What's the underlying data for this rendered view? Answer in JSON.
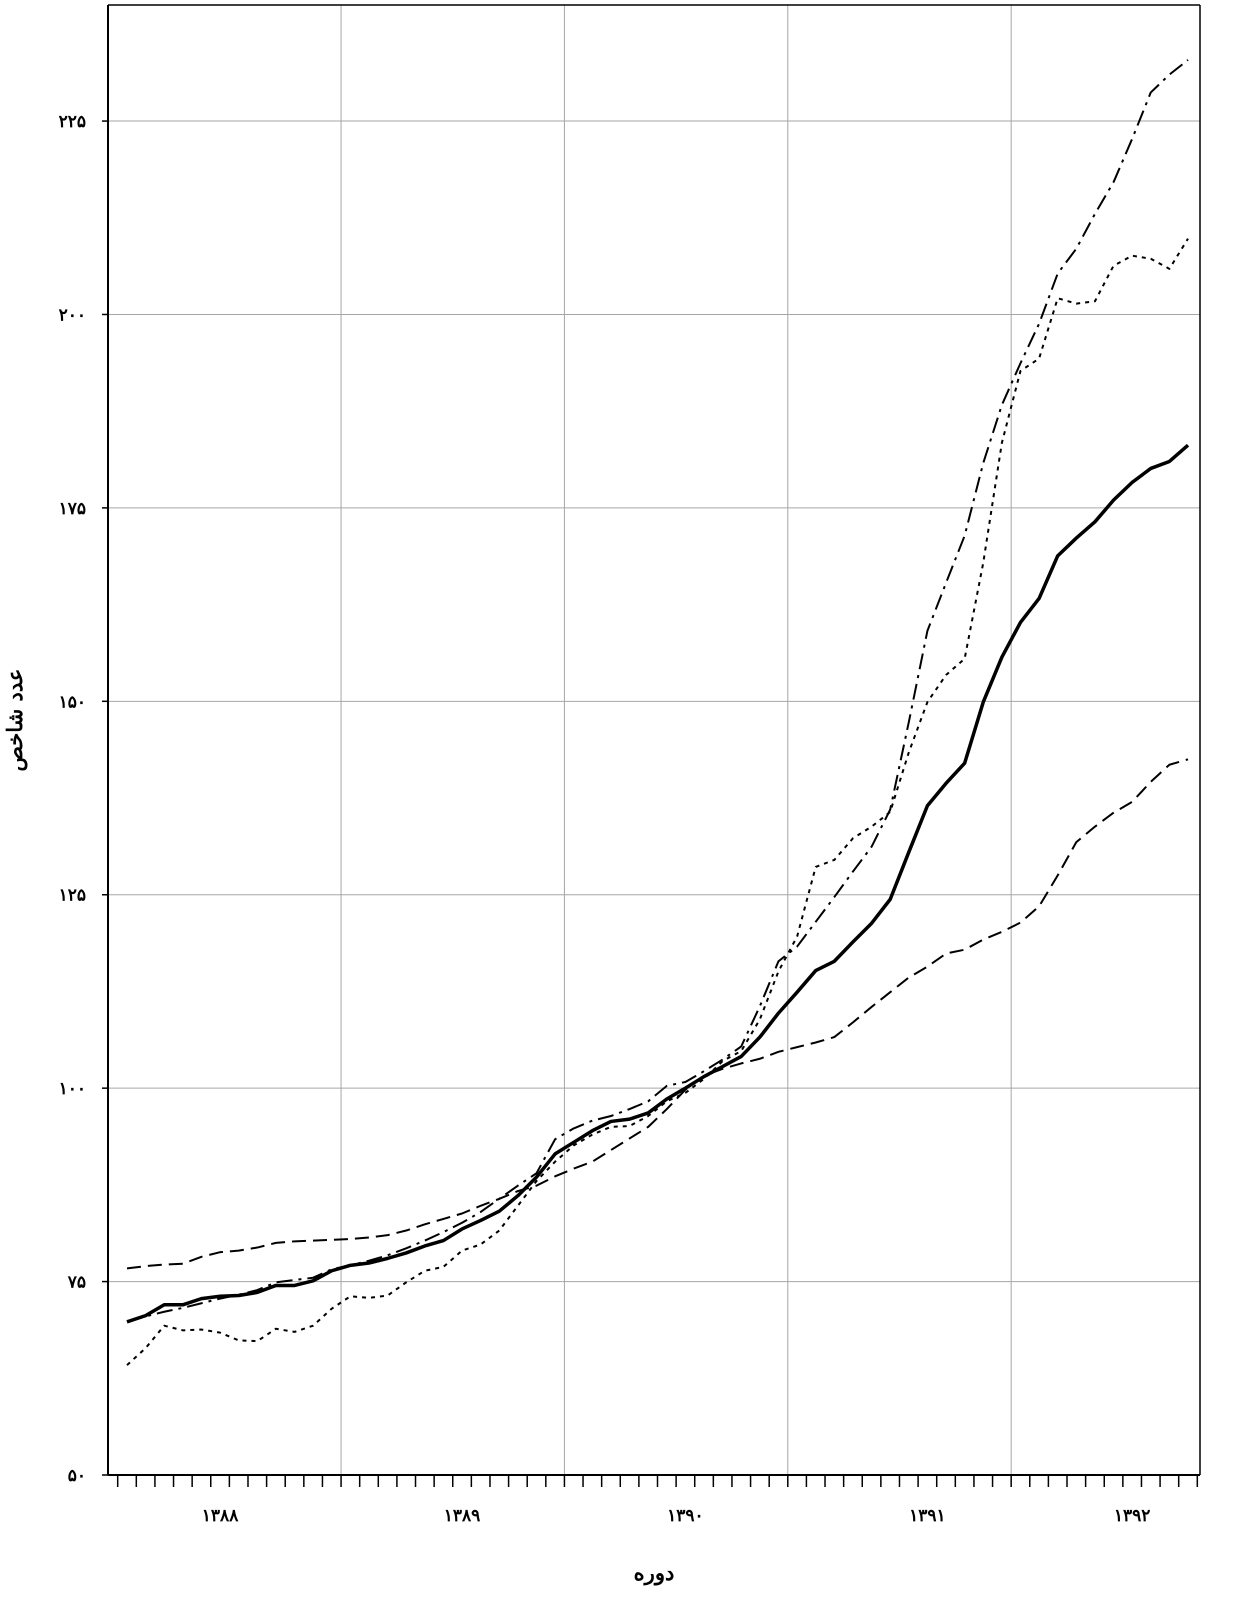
{
  "chart_data": {
    "type": "line",
    "x_label": "دوره",
    "y_label": "عدد شاخص",
    "categories": [
      null,
      null,
      null,
      null,
      null,
      "۱۳۸۸",
      null,
      null,
      null,
      null,
      null,
      null,
      null,
      null,
      null,
      null,
      null,
      null,
      "۱۳۸۹",
      null,
      null,
      null,
      null,
      null,
      null,
      null,
      null,
      null,
      null,
      null,
      "۱۳۹۰",
      null,
      null,
      null,
      null,
      null,
      null,
      null,
      null,
      null,
      null,
      null,
      null,
      "۱۳۹۱",
      null,
      null,
      null,
      null,
      null,
      null,
      null,
      null,
      null,
      null,
      "۱۳۹۲",
      null,
      null,
      null
    ],
    "ylim": [
      50,
      240
    ],
    "yticks": [
      {
        "value": 50,
        "label": "۵۰"
      },
      {
        "value": 75,
        "label": "۷۵"
      },
      {
        "value": 100,
        "label": "۱۰۰"
      },
      {
        "value": 125,
        "label": "۱۲۵"
      },
      {
        "value": 150,
        "label": "۱۵۰"
      },
      {
        "value": 175,
        "label": "۱۷۵"
      },
      {
        "value": 200,
        "label": "۲۰۰"
      },
      {
        "value": 225,
        "label": "۲۲۵"
      }
    ],
    "grid": true,
    "series": [
      {
        "color": "#000000",
        "style": "dashed",
        "values": [
          76.7,
          77.0,
          77.2,
          77.3,
          78.2,
          78.8,
          79.0,
          79.4,
          80.0,
          80.2,
          80.3,
          80.4,
          80.5,
          80.7,
          81.0,
          81.6,
          82.4,
          83.1,
          83.8,
          84.8,
          85.7,
          86.7,
          87.4,
          88.6,
          89.6,
          90.5,
          92.0,
          93.5,
          95.0,
          97.3,
          99.8,
          101.6,
          102.5,
          103.2,
          103.8,
          104.7,
          105.3,
          105.9,
          106.6,
          108.5,
          110.5,
          112.4,
          114.3,
          115.7,
          117.4,
          117.9,
          119.2,
          120.2,
          121.4,
          123.5,
          127.5,
          131.8,
          133.8,
          135.6,
          137.0,
          139.6,
          141.8,
          142.5
        ]
      },
      {
        "color": "#000000",
        "style": "dotted",
        "values": [
          64.2,
          66.4,
          69.3,
          68.7,
          68.8,
          68.4,
          67.4,
          67.3,
          68.9,
          68.5,
          69.3,
          71.5,
          73.1,
          72.9,
          73.2,
          74.9,
          76.4,
          76.9,
          79.0,
          79.8,
          81.6,
          84.8,
          88.0,
          90.5,
          92.6,
          94.0,
          95.0,
          95.1,
          96.4,
          98.3,
          99.4,
          101.2,
          103.5,
          104.8,
          108.9,
          115.1,
          119.6,
          128.6,
          129.5,
          132.3,
          133.8,
          135.7,
          143.4,
          149.9,
          153.4,
          155.5,
          167.9,
          183.4,
          192.7,
          194.3,
          202.1,
          201.4,
          201.7,
          206.3,
          207.6,
          207.2,
          205.9,
          209.8
        ]
      },
      {
        "color": "#000000",
        "style": "dashdot",
        "values": [
          69.8,
          70.5,
          71.1,
          71.6,
          72.2,
          72.8,
          73.3,
          73.9,
          74.9,
          75.2,
          75.5,
          76.6,
          77.1,
          77.7,
          78.4,
          79.3,
          80.3,
          81.4,
          82.6,
          84.0,
          85.7,
          87.4,
          89.0,
          93.4,
          94.8,
          95.8,
          96.4,
          97.3,
          98.3,
          100.3,
          100.8,
          102.2,
          103.7,
          105.4,
          110.6,
          116.4,
          118.3,
          121.5,
          124.7,
          128.0,
          131.2,
          136.0,
          147.3,
          159.1,
          165.3,
          171.4,
          180.8,
          188.3,
          193.7,
          198.8,
          205.3,
          208.5,
          213.0,
          217.1,
          222.7,
          228.7,
          231.0,
          232.9
        ]
      },
      {
        "color": "#000000",
        "style": "solid",
        "values": [
          69.8,
          70.6,
          72.0,
          72.0,
          72.8,
          73.1,
          73.2,
          73.6,
          74.5,
          74.5,
          75.1,
          76.4,
          77.1,
          77.4,
          78.0,
          78.7,
          79.6,
          80.3,
          81.8,
          82.9,
          84.1,
          86.1,
          88.5,
          91.5,
          93.0,
          94.5,
          95.7,
          96.0,
          96.8,
          98.6,
          100.0,
          101.5,
          102.8,
          104.1,
          106.6,
          109.7,
          112.4,
          115.2,
          116.4,
          118.9,
          121.3,
          124.4,
          130.5,
          136.5,
          139.4,
          142.0,
          149.9,
          155.7,
          160.2,
          163.3,
          168.8,
          171.1,
          173.2,
          176.0,
          178.3,
          180.1,
          181.0,
          183.1
        ]
      }
    ]
  }
}
